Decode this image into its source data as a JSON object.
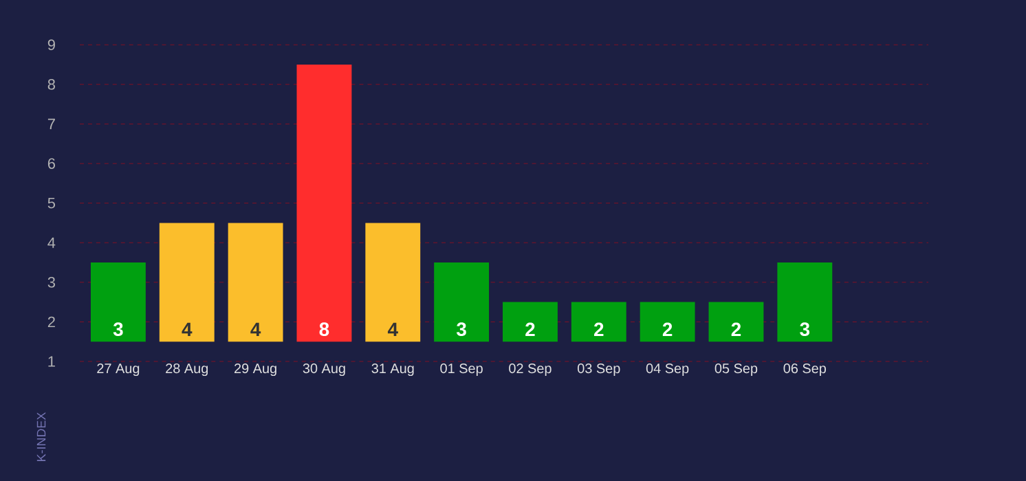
{
  "chart_data": {
    "type": "bar",
    "ylabel": "K-INDEX",
    "categories": [
      "27 Aug",
      "28 Aug",
      "29 Aug",
      "30 Aug",
      "31 Aug",
      "01 Sep",
      "02 Sep",
      "03 Sep",
      "04 Sep",
      "05 Sep",
      "06 Sep"
    ],
    "base": [
      1.5,
      1.5,
      1.5,
      1.5,
      1.5,
      1.5,
      1.5,
      1.5,
      1.5,
      1.5,
      1.5
    ],
    "values": [
      2,
      3,
      3,
      7,
      3,
      2,
      1,
      1,
      1,
      1,
      2
    ],
    "value_labels": [
      "3",
      "4",
      "4",
      "8",
      "4",
      "3",
      "2",
      "2",
      "2",
      "2",
      "3"
    ],
    "colors": [
      "#00a010",
      "#fbbe2c",
      "#fbbe2c",
      "#ff2d2d",
      "#fbbe2c",
      "#00a010",
      "#00a010",
      "#00a010",
      "#00a010",
      "#00a010",
      "#00a010"
    ],
    "ylim": [
      1,
      9
    ],
    "yticks": [
      1,
      2,
      3,
      4,
      5,
      6,
      7,
      8,
      9
    ],
    "grid": "y"
  }
}
